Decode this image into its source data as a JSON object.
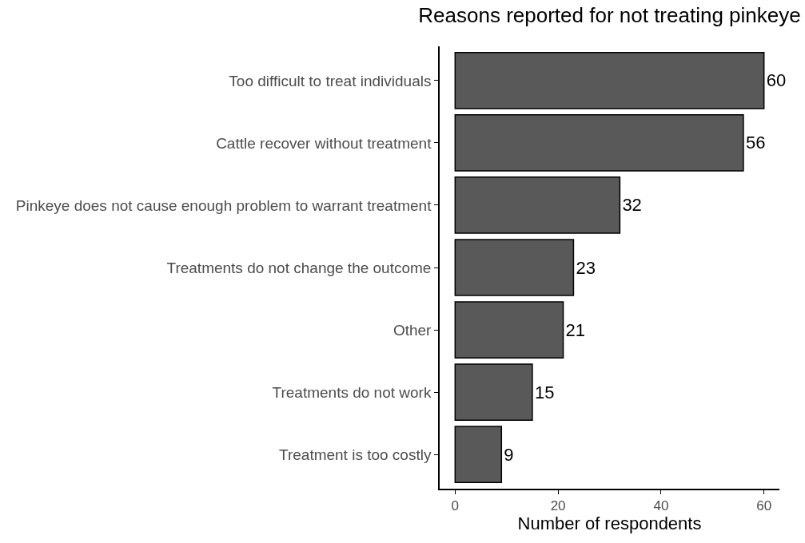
{
  "chart_data": {
    "type": "bar",
    "orientation": "horizontal",
    "title": "Reasons reported for not treating pinkeye",
    "xlabel": "Number of respondents",
    "categories": [
      "Too difficult to treat individuals",
      "Cattle recover without treatment",
      "Pinkeye does not cause enough problem to warrant treatment",
      "Treatments do not change the outcome",
      "Other",
      "Treatments do not work",
      "Treatment is too costly"
    ],
    "values": [
      60,
      56,
      32,
      23,
      21,
      15,
      9
    ],
    "color": "#595959",
    "xlim": [
      -3,
      63
    ],
    "xticks": [
      0,
      20,
      40,
      60
    ],
    "data_labels": true
  }
}
